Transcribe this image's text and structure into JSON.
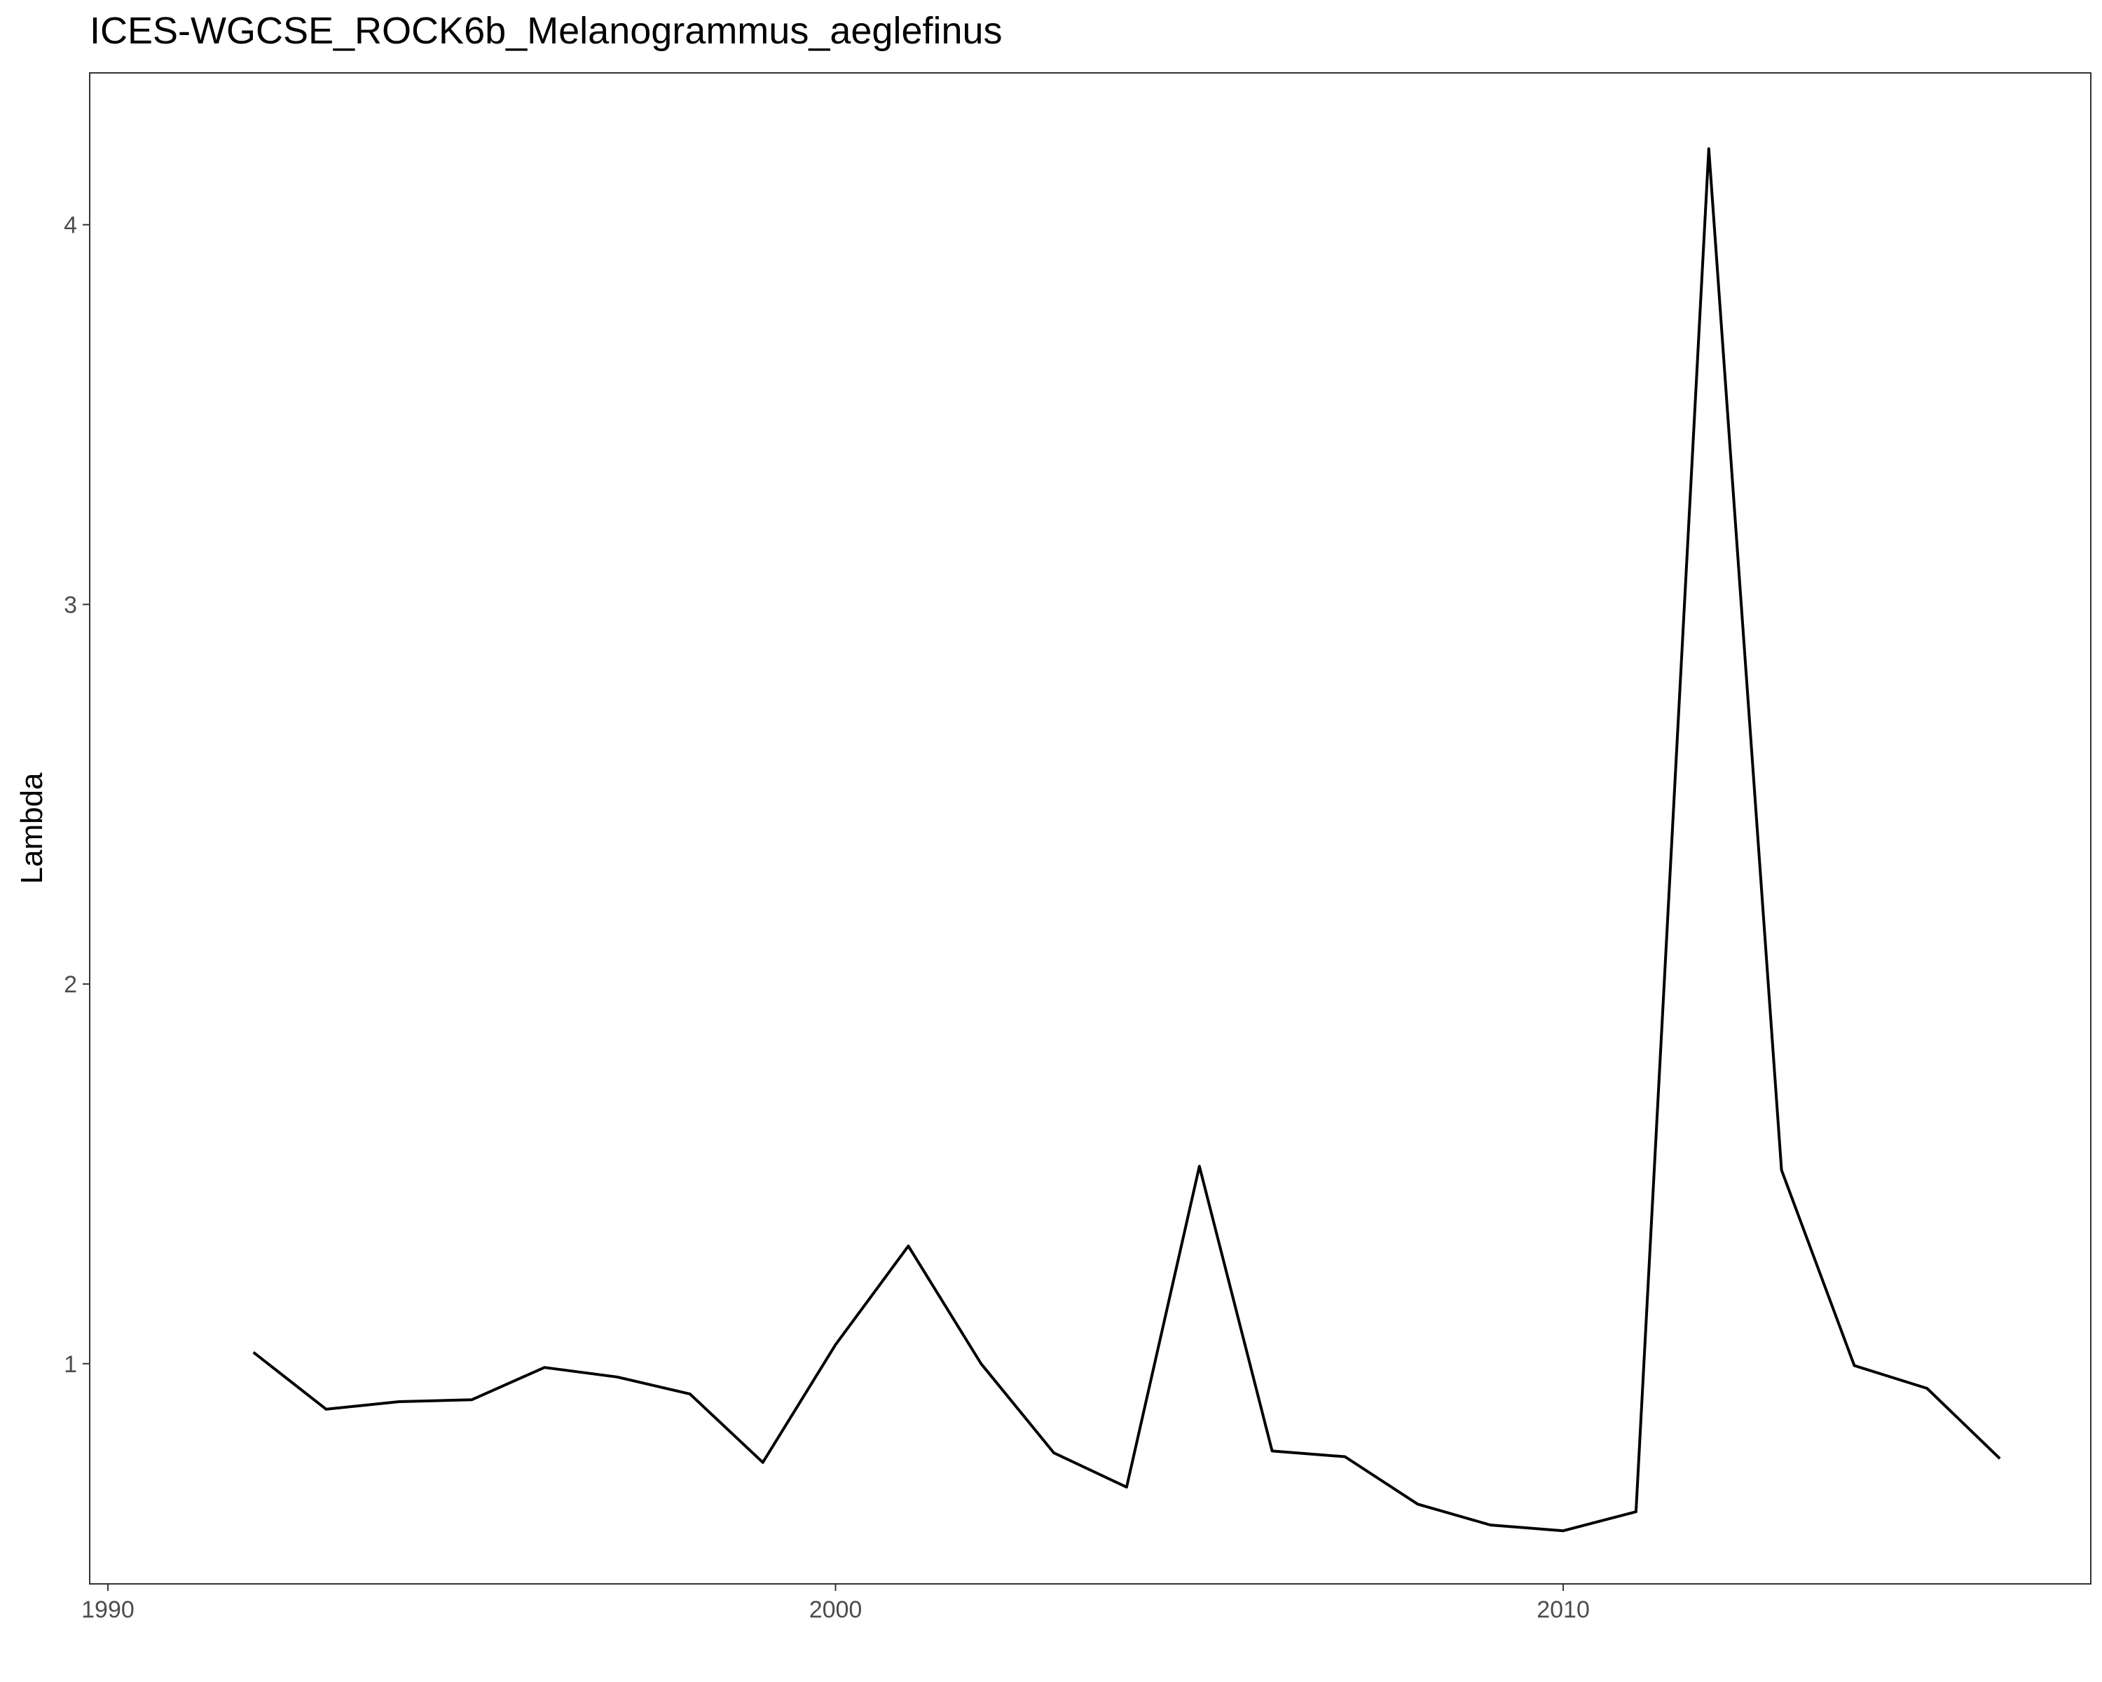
{
  "chart_data": {
    "type": "line",
    "title": "ICES-WGCSE_ROCK6b_Melanogrammus_aeglefinus",
    "xlabel": "",
    "ylabel": "Lambda",
    "xlim": [
      1989.75,
      2017.25
    ],
    "ylim": [
      0.42,
      4.4
    ],
    "x_ticks": [
      1990,
      2000,
      2010
    ],
    "y_ticks": [
      1,
      2,
      3,
      4
    ],
    "grid": false,
    "legend": "none",
    "series": [
      {
        "color": "#000000",
        "x": [
          1992,
          1993,
          1994,
          1995,
          1996,
          1997,
          1998,
          1999,
          2000,
          2001,
          2002,
          2003,
          2004,
          2005,
          2006,
          2007,
          2008,
          2009,
          2010,
          2011,
          2012,
          2013,
          2014,
          2015,
          2016
        ],
        "y": [
          1.03,
          0.88,
          0.9,
          0.905,
          0.99,
          0.965,
          0.92,
          0.74,
          1.05,
          1.31,
          1.0,
          0.765,
          0.675,
          1.52,
          0.77,
          0.755,
          0.63,
          0.575,
          0.56,
          0.61,
          4.2,
          1.51,
          0.995,
          0.935,
          0.75
        ]
      }
    ]
  }
}
